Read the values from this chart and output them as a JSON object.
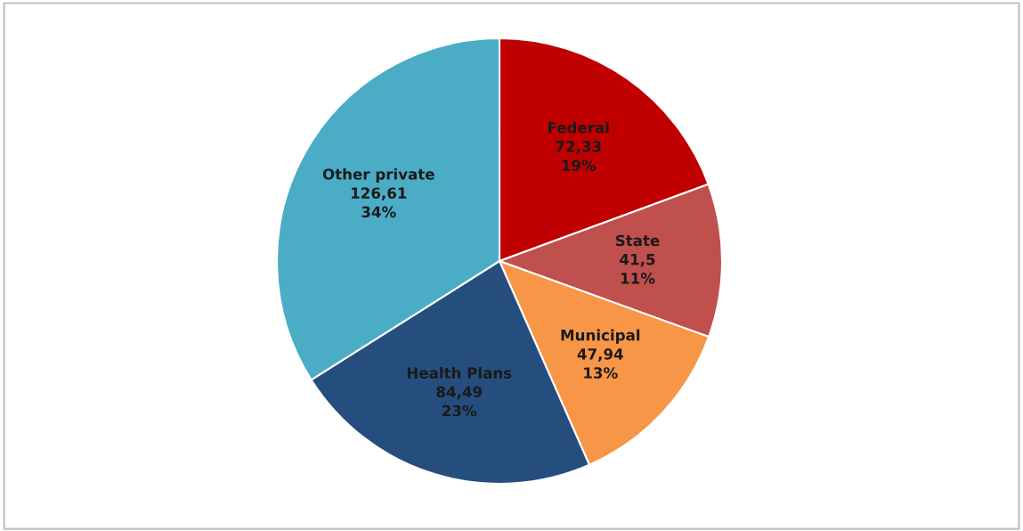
{
  "chart_data": {
    "type": "pie",
    "categories": [
      "Federal",
      "State",
      "Municipal",
      "Health Plans",
      "Other private"
    ],
    "values": [
      72.33,
      41.5,
      47.94,
      84.49,
      126.61
    ],
    "colors": [
      "#c00000",
      "#c0504d",
      "#f79646",
      "#254e7e",
      "#4bacc6"
    ],
    "value_labels": [
      "72,33\n19%",
      "41,5\n11%",
      "47,94\n13%",
      "84,49\n23%",
      "126,61\n34%"
    ],
    "legend": false
  }
}
